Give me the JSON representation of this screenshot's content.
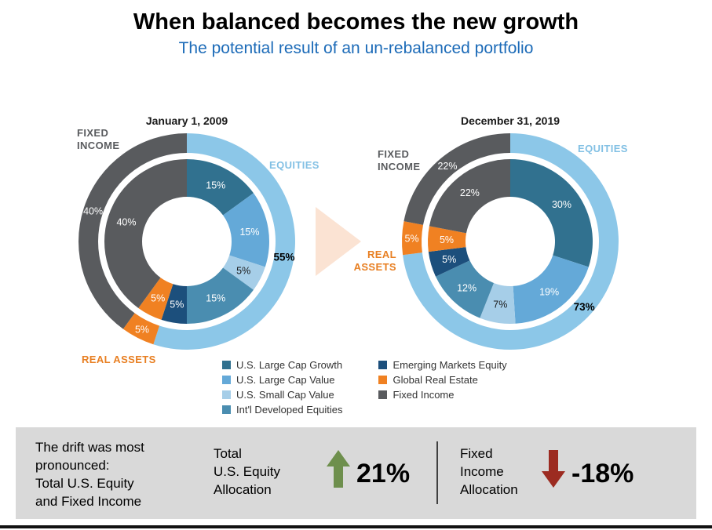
{
  "page": {
    "title": "When balanced becomes the new growth",
    "subtitle": "The potential result of an un-rebalanced portfolio"
  },
  "colors": {
    "subtitle": "#1C6BB8",
    "equities_label": "#82C0E4",
    "fixed_income_label": "#595B5E",
    "real_assets_label": "#E87F22",
    "band_bg": "#D9D9D9",
    "up_arrow": "#6E8F4D",
    "down_arrow": "#9C2B21",
    "transition_arrow": "#FBE3D3",
    "footer_rule": "#111111"
  },
  "chart_data": [
    {
      "type": "pie",
      "variant": "double-ring-donut",
      "date_label": "January 1, 2009",
      "callouts": {
        "fixed_income": "FIXED\nINCOME",
        "equities": "EQUITIES",
        "real_assets": "REAL ASSETS"
      },
      "outer_ring": [
        {
          "name": "Equities",
          "value": 55,
          "label": "55%",
          "color": "#8CC7E8",
          "label_color": "#000000",
          "bold": true
        },
        {
          "name": "Real Assets",
          "value": 5,
          "label": "5%",
          "color": "#F08122",
          "label_color": "#FFFFFF"
        },
        {
          "name": "Fixed Income",
          "value": 40,
          "label": "40%",
          "color": "#595B5E",
          "label_color": "#FFFFFF"
        }
      ],
      "inner_ring": [
        {
          "name": "U.S. Large Cap Growth",
          "value": 15,
          "label": "15%",
          "color": "#31718F",
          "label_color": "#FFFFFF"
        },
        {
          "name": "U.S. Large Cap Value",
          "value": 15,
          "label": "15%",
          "color": "#64A9D8",
          "label_color": "#FFFFFF"
        },
        {
          "name": "U.S. Small Cap Value",
          "value": 5,
          "label": "5%",
          "color": "#A6CEE8",
          "label_color": "#1A1A1A"
        },
        {
          "name": "Int'l Developed Equities",
          "value": 15,
          "label": "15%",
          "color": "#4A8DB0",
          "label_color": "#FFFFFF"
        },
        {
          "name": "Emerging Markets Equity",
          "value": 5,
          "label": "5%",
          "color": "#1C4F7C",
          "label_color": "#FFFFFF"
        },
        {
          "name": "Global Real Estate",
          "value": 5,
          "label": "5%",
          "color": "#F08122",
          "label_color": "#FFFFFF"
        },
        {
          "name": "Fixed Income",
          "value": 40,
          "label": "40%",
          "color": "#595B5E",
          "label_color": "#FFFFFF"
        }
      ]
    },
    {
      "type": "pie",
      "variant": "double-ring-donut",
      "date_label": "December 31, 2019",
      "callouts": {
        "fixed_income": "FIXED\nINCOME",
        "equities": "EQUITIES",
        "real_assets": "REAL\nASSETS"
      },
      "outer_ring": [
        {
          "name": "Equities",
          "value": 73,
          "label": "73%",
          "color": "#8CC7E8",
          "label_color": "#000000",
          "bold": true
        },
        {
          "name": "Real Assets",
          "value": 5,
          "label": "5%",
          "color": "#F08122",
          "label_color": "#FFFFFF"
        },
        {
          "name": "Fixed Income",
          "value": 22,
          "label": "22%",
          "color": "#595B5E",
          "label_color": "#FFFFFF"
        }
      ],
      "inner_ring": [
        {
          "name": "U.S. Large Cap Growth",
          "value": 30,
          "label": "30%",
          "color": "#31718F",
          "label_color": "#FFFFFF"
        },
        {
          "name": "U.S. Large Cap Value",
          "value": 19,
          "label": "19%",
          "color": "#64A9D8",
          "label_color": "#FFFFFF"
        },
        {
          "name": "U.S. Small Cap Value",
          "value": 7,
          "label": "7%",
          "color": "#A6CEE8",
          "label_color": "#1A1A1A"
        },
        {
          "name": "Int'l Developed Equities",
          "value": 12,
          "label": "12%",
          "color": "#4A8DB0",
          "label_color": "#FFFFFF"
        },
        {
          "name": "Emerging Markets Equity",
          "value": 5,
          "label": "5%",
          "color": "#1C4F7C",
          "label_color": "#FFFFFF"
        },
        {
          "name": "Global Real Estate",
          "value": 5,
          "label": "5%",
          "color": "#F08122",
          "label_color": "#FFFFFF"
        },
        {
          "name": "Fixed Income",
          "value": 22,
          "label": "22%",
          "color": "#595B5E",
          "label_color": "#FFFFFF"
        }
      ]
    }
  ],
  "legend": {
    "columns": [
      [
        {
          "label": "U.S. Large Cap Growth",
          "color": "#31718F"
        },
        {
          "label": "U.S. Large Cap Value",
          "color": "#64A9D8"
        },
        {
          "label": "U.S. Small Cap Value",
          "color": "#A6CEE8"
        },
        {
          "label": "Int'l Developed Equities",
          "color": "#4A8DB0"
        }
      ],
      [
        {
          "label": "Emerging Markets Equity",
          "color": "#1C4F7C"
        },
        {
          "label": "Global Real Estate",
          "color": "#F08122"
        },
        {
          "label": "Fixed Income",
          "color": "#595B5E"
        }
      ]
    ]
  },
  "summary": {
    "drift_note": "The drift was most\npronounced:\nTotal U.S. Equity\nand Fixed Income",
    "stat1": {
      "label": "Total\nU.S. Equity\nAllocation",
      "direction": "up",
      "value": "21%"
    },
    "stat2": {
      "label": "Fixed\nIncome\nAllocation",
      "direction": "down",
      "value": "-18%"
    }
  }
}
